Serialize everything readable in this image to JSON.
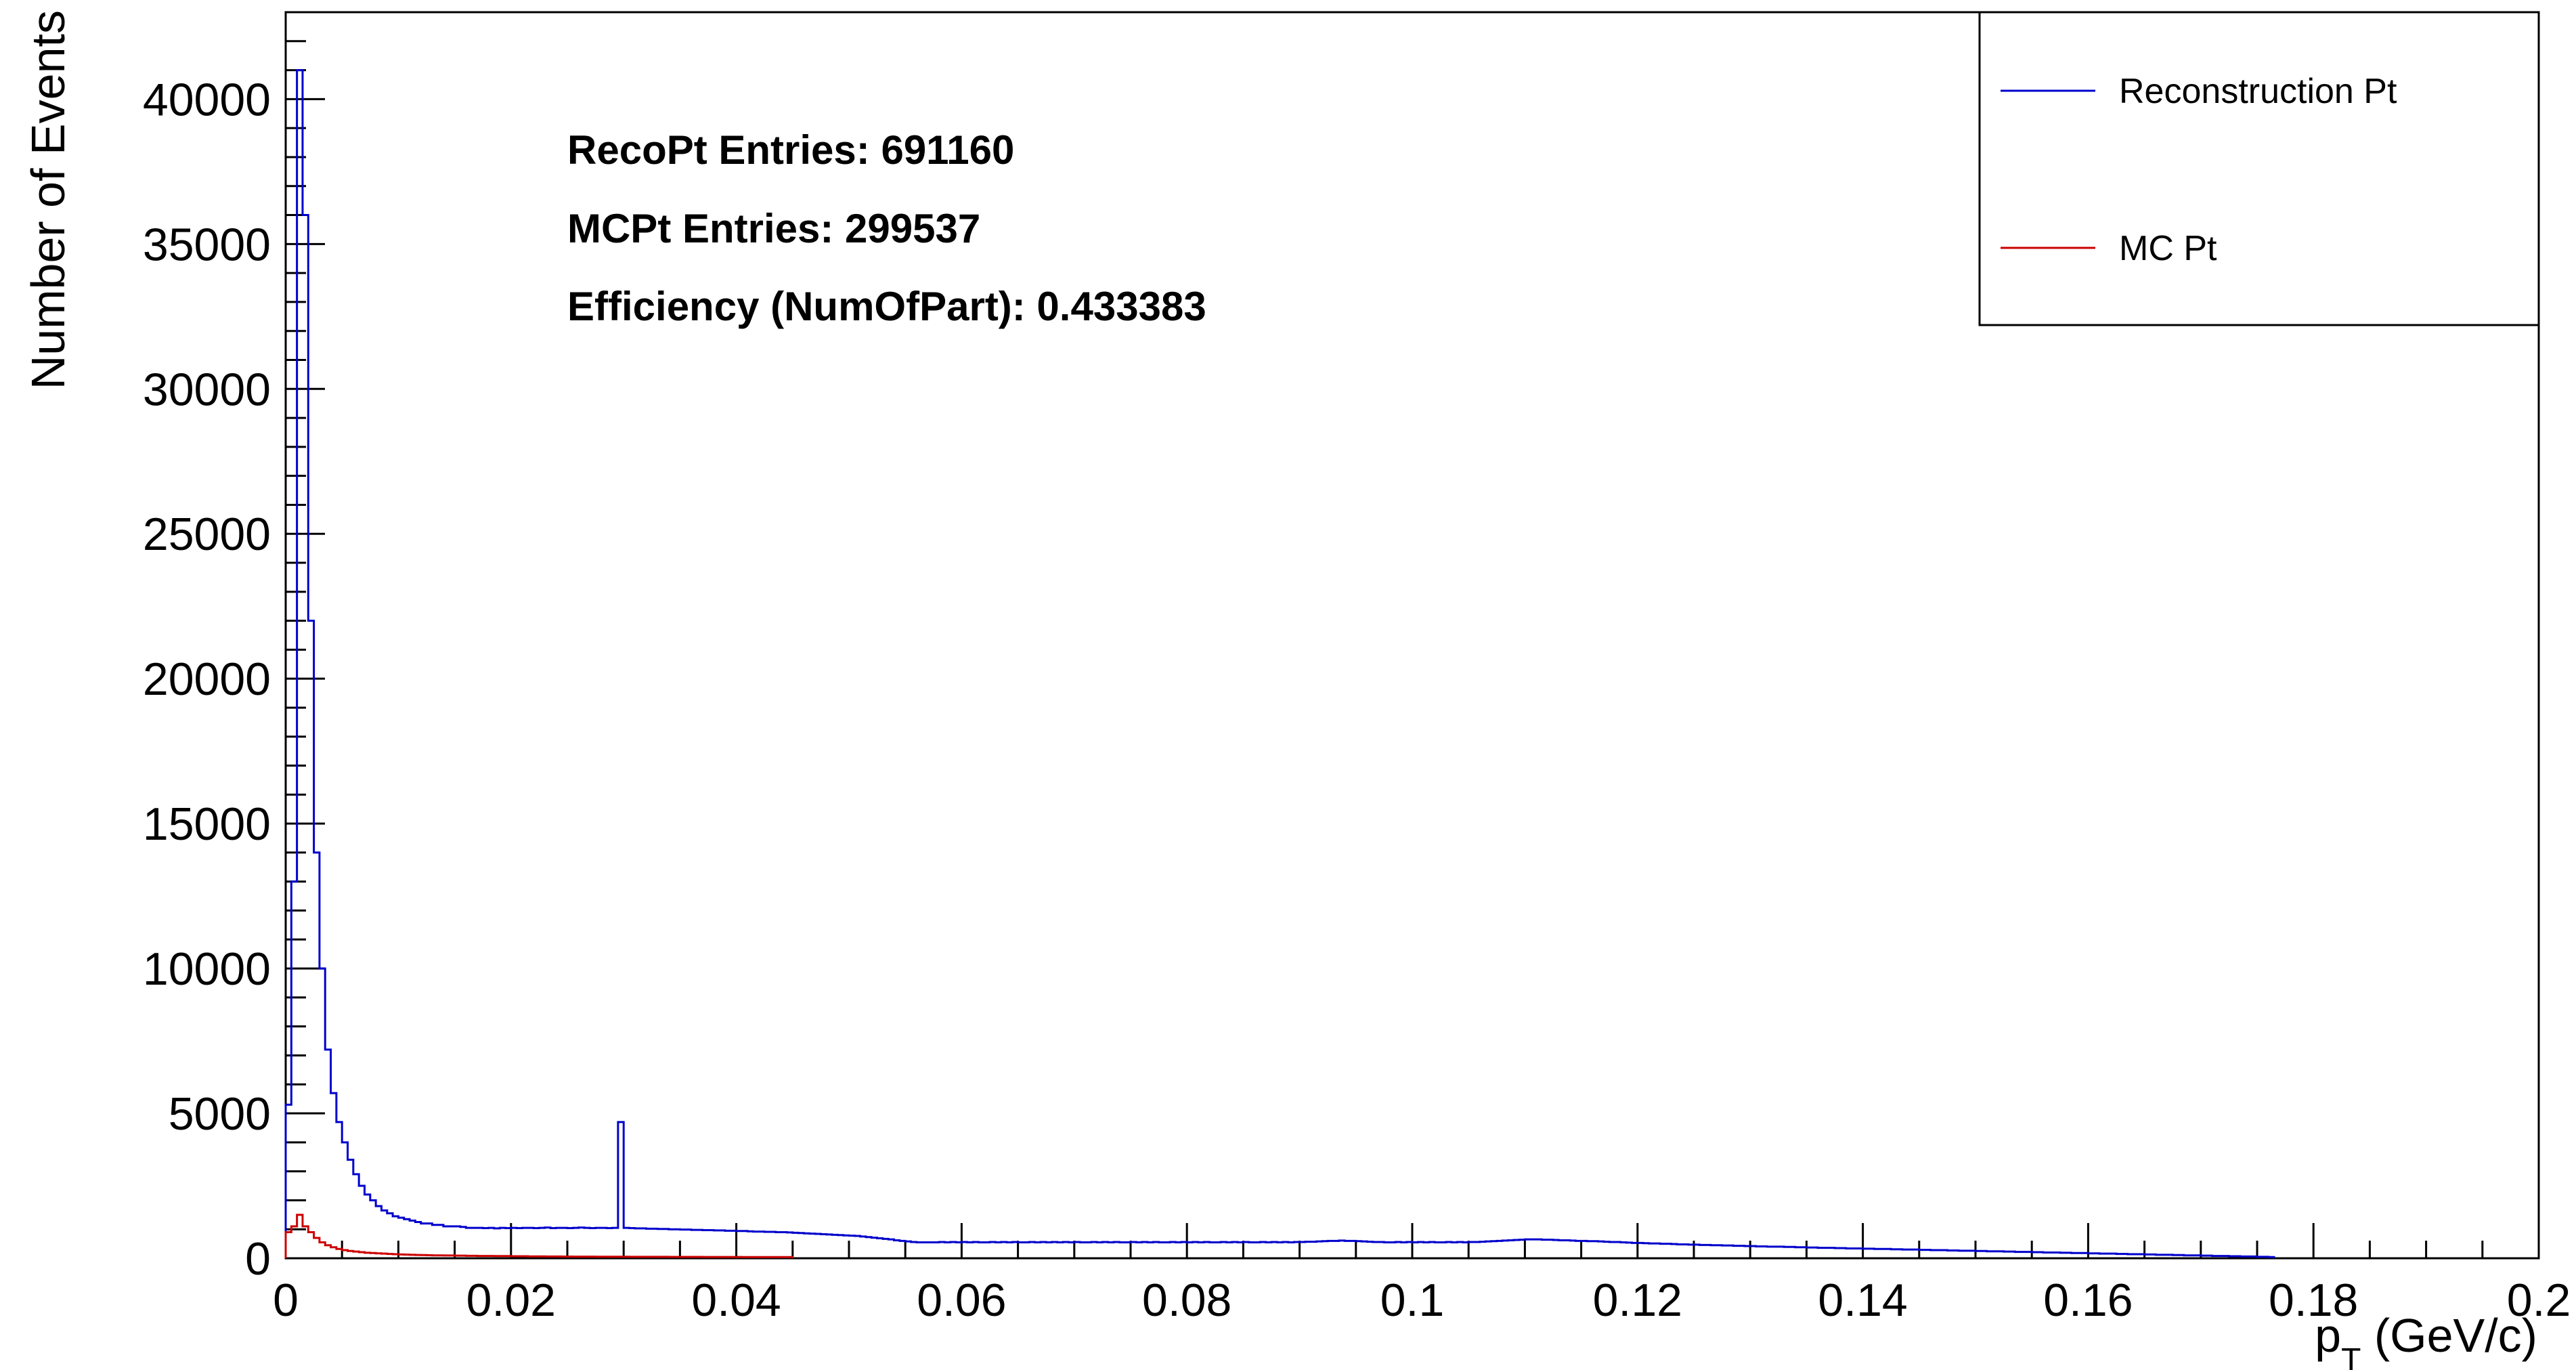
{
  "chart_data": {
    "type": "histogram",
    "title": "",
    "xlabel": "p",
    "xlabel_subscript": "T",
    "xlabel_unit": " (GeV/c)",
    "ylabel": "Number of Events",
    "xlim": [
      0,
      0.2
    ],
    "ylim": [
      0,
      43000
    ],
    "x_ticks": [
      0,
      0.02,
      0.04,
      0.06,
      0.08,
      0.1,
      0.12,
      0.14,
      0.16,
      0.18,
      0.2
    ],
    "x_tick_labels": [
      "0",
      "0.02",
      "0.04",
      "0.06",
      "0.08",
      "0.1",
      "0.12",
      "0.14",
      "0.16",
      "0.18",
      "0.2"
    ],
    "y_ticks": [
      0,
      5000,
      10000,
      15000,
      20000,
      25000,
      30000,
      35000,
      40000
    ],
    "y_tick_labels": [
      "0",
      "5000",
      "10000",
      "15000",
      "20000",
      "25000",
      "30000",
      "35000",
      "40000"
    ],
    "grid": false,
    "legend_position": "top-right",
    "bin_width": 0.0005,
    "series": [
      {
        "name": "Reconstruction Pt",
        "color": "#0000cc",
        "values": [
          5300,
          13000,
          41000,
          36000,
          22000,
          14000,
          10000,
          7200,
          5700,
          4700,
          4000,
          3400,
          2900,
          2500,
          2200,
          2000,
          1800,
          1650,
          1550,
          1450,
          1400,
          1350,
          1300,
          1250,
          1200,
          1200,
          1150,
          1150,
          1100,
          1100,
          1100,
          1080,
          1050,
          1050,
          1050,
          1040,
          1050,
          1030,
          1050,
          1040,
          1050,
          1040,
          1050,
          1050,
          1040,
          1050,
          1060,
          1040,
          1050,
          1050,
          1040,
          1050,
          1060,
          1050,
          1040,
          1050,
          1050,
          1040,
          1050,
          4700,
          1050,
          1040,
          1030,
          1030,
          1020,
          1020,
          1010,
          1010,
          1000,
          1000,
          990,
          990,
          980,
          980,
          970,
          970,
          960,
          960,
          950,
          950,
          940,
          940,
          930,
          920,
          920,
          910,
          910,
          900,
          900,
          890,
          880,
          870,
          860,
          850,
          840,
          830,
          820,
          810,
          800,
          790,
          780,
          770,
          750,
          730,
          710,
          690,
          670,
          650,
          620,
          600,
          580,
          560,
          550,
          550,
          550,
          550,
          560,
          550,
          560,
          550,
          560,
          550,
          560,
          550,
          550,
          560,
          550,
          560,
          550,
          560,
          550,
          550,
          560,
          550,
          560,
          550,
          560,
          550,
          560,
          550,
          560,
          550,
          550,
          560,
          550,
          560,
          550,
          560,
          550,
          550,
          560,
          550,
          560,
          550,
          560,
          550,
          550,
          560,
          550,
          560,
          550,
          560,
          550,
          560,
          550,
          550,
          560,
          550,
          560,
          550,
          560,
          550,
          550,
          560,
          550,
          560,
          550,
          560,
          550,
          560,
          560,
          570,
          570,
          580,
          590,
          600,
          600,
          610,
          600,
          600,
          590,
          580,
          570,
          560,
          560,
          550,
          550,
          560,
          550,
          560,
          550,
          560,
          550,
          560,
          550,
          550,
          560,
          550,
          560,
          550,
          560,
          560,
          570,
          580,
          590,
          600,
          610,
          620,
          630,
          640,
          650,
          650,
          650,
          640,
          640,
          630,
          620,
          620,
          610,
          600,
          600,
          590,
          590,
          580,
          570,
          560,
          560,
          550,
          540,
          530,
          530,
          520,
          510,
          510,
          500,
          500,
          490,
          480,
          480,
          470,
          470,
          460,
          460,
          450,
          450,
          440,
          440,
          430,
          430,
          420,
          420,
          410,
          410,
          400,
          400,
          400,
          390,
          390,
          380,
          380,
          370,
          370,
          360,
          360,
          360,
          350,
          350,
          340,
          340,
          340,
          330,
          330,
          320,
          320,
          320,
          310,
          310,
          300,
          300,
          300,
          290,
          290,
          280,
          280,
          280,
          270,
          270,
          260,
          260,
          260,
          250,
          250,
          240,
          240,
          240,
          230,
          230,
          220,
          220,
          220,
          210,
          210,
          200,
          200,
          200,
          190,
          190,
          180,
          180,
          180,
          170,
          170,
          160,
          160,
          160,
          150,
          150,
          140,
          140,
          140,
          130,
          130,
          120,
          120,
          120,
          110,
          110,
          100,
          100,
          100,
          90,
          90,
          80,
          80,
          80,
          70,
          70,
          60,
          60,
          60,
          50,
          50,
          40
        ]
      },
      {
        "name": "MC Pt",
        "color": "#cc0000",
        "values": [
          900,
          1100,
          1500,
          1100,
          900,
          700,
          550,
          450,
          380,
          320,
          280,
          250,
          230,
          210,
          190,
          180,
          170,
          160,
          150,
          140,
          130,
          125,
          120,
          115,
          110,
          105,
          100,
          100,
          95,
          95,
          90,
          90,
          85,
          85,
          80,
          80,
          80,
          75,
          75,
          75,
          70,
          70,
          70,
          65,
          65,
          65,
          60,
          60,
          60,
          58,
          58,
          56,
          56,
          55,
          55,
          54,
          54,
          53,
          53,
          52,
          52,
          51,
          51,
          50,
          50,
          50,
          49,
          49,
          48,
          48,
          47,
          47,
          46,
          46,
          45,
          45,
          45,
          44,
          44,
          43,
          43,
          42,
          42,
          42,
          41,
          41,
          40,
          40,
          40,
          40
        ]
      }
    ],
    "annotations": [
      "RecoPt Entries: 691160",
      "MCPt Entries: 299537",
      "Efficiency (NumOfPart): 0.433383"
    ]
  }
}
